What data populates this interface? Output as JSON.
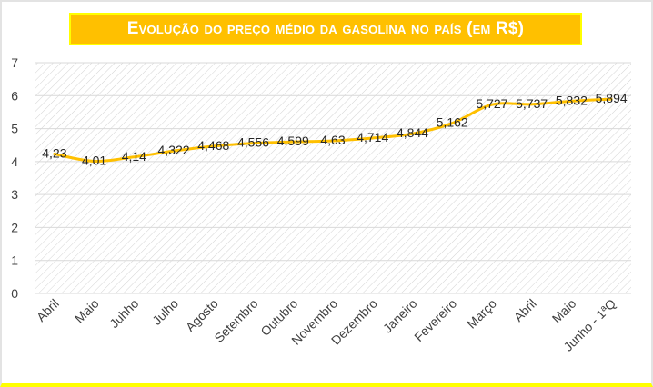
{
  "chart_data": {
    "type": "line",
    "title": "Evolução do preço médio da gasolina no país (em R$)",
    "categories": [
      "Abril",
      "Maio",
      "Juhho",
      "Julho",
      "Agosto",
      "Setembro",
      "Outubro",
      "Novembro",
      "Dezembro",
      "Janeiro",
      "Fevereiro",
      "Março",
      "Abril",
      "Maio",
      "Junho - 1ªQ"
    ],
    "values": [
      4.23,
      4.01,
      4.14,
      4.322,
      4.468,
      4.556,
      4.599,
      4.63,
      4.714,
      4.844,
      5.162,
      5.727,
      5.737,
      5.832,
      5.894
    ],
    "value_labels": [
      "4,23",
      "4,01",
      "4,14",
      "4,322",
      "4,468",
      "4,556",
      "4,599",
      "4,63",
      "4,714",
      "4,844",
      "5,162",
      "5,727",
      "5,737",
      "5,832",
      "5,894"
    ],
    "ylim": [
      0,
      7
    ],
    "yticks": [
      "0",
      "1",
      "2",
      "3",
      "4",
      "5",
      "6",
      "7"
    ],
    "xlabel": "",
    "ylabel": "",
    "grid": true,
    "line_color": "#ffc000",
    "title_bg": "#ffc000"
  }
}
